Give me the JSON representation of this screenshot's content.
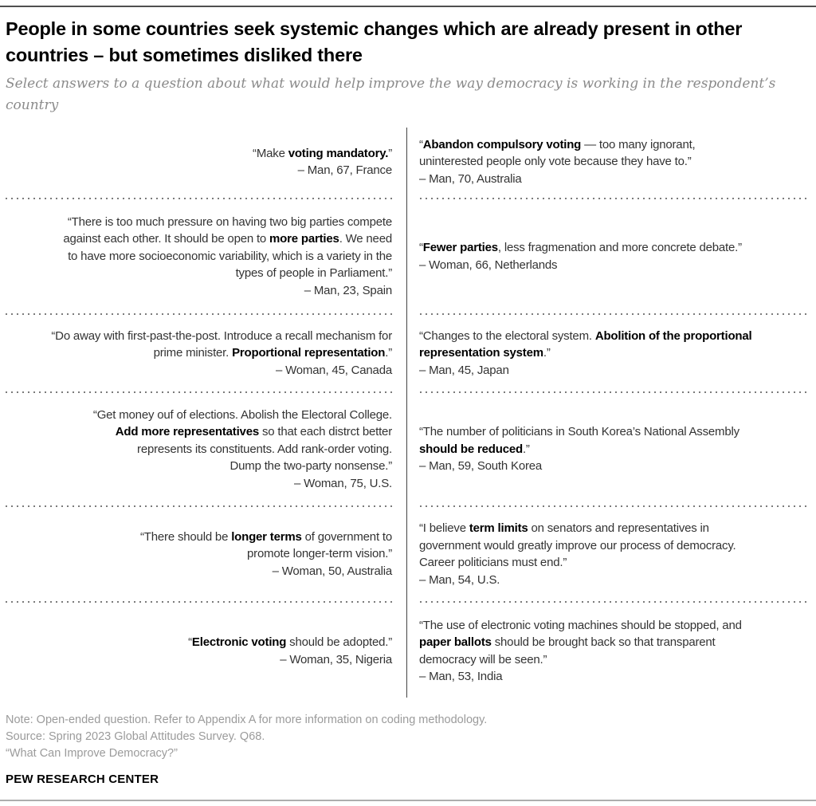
{
  "header": {
    "title": "People in some countries seek systemic changes which are already present in other\ncountries – but sometimes disliked there",
    "subtitle": "Select answers to a question about what would help improve the way democracy is working in the respondent’s\ncountry"
  },
  "quotes": {
    "rows": [
      {
        "left": {
          "segments": [
            {
              "t": "“Make ",
              "b": false
            },
            {
              "t": "voting mandatory.",
              "b": true
            },
            {
              "t": "”",
              "b": false
            }
          ],
          "attribution": "– Man, 67, France"
        },
        "right": {
          "segments": [
            {
              "t": "“",
              "b": false
            },
            {
              "t": "Abandon compulsory voting",
              "b": true
            },
            {
              "t": " — too many ignorant,\nuninterested people only vote because they have to.”",
              "b": false
            }
          ],
          "attribution": "– Man, 70, Australia"
        }
      },
      {
        "left": {
          "segments": [
            {
              "t": "“There is too much pressure on having two big parties compete\nagainst each other. It should be open to ",
              "b": false
            },
            {
              "t": "more parties",
              "b": true
            },
            {
              "t": ". We need\nto have more socioeconomic variability, which is a variety in the\ntypes of people in Parliament.”",
              "b": false
            }
          ],
          "attribution": "– Man, 23, Spain"
        },
        "right": {
          "segments": [
            {
              "t": "“",
              "b": false
            },
            {
              "t": "Fewer parties",
              "b": true
            },
            {
              "t": ", less fragmenation and more concrete debate.”",
              "b": false
            }
          ],
          "attribution": "– Woman, 66, Netherlands"
        }
      },
      {
        "left": {
          "segments": [
            {
              "t": "“Do away with first-past-the-post. Introduce a recall mechanism for\nprime minister. ",
              "b": false
            },
            {
              "t": "Proportional representation",
              "b": true
            },
            {
              "t": ".”",
              "b": false
            }
          ],
          "attribution": "– Woman, 45, Canada"
        },
        "right": {
          "segments": [
            {
              "t": "“Changes to the electoral system. ",
              "b": false
            },
            {
              "t": "Abolition of the proportional\nrepresentation system",
              "b": true
            },
            {
              "t": ".”",
              "b": false
            }
          ],
          "attribution": "– Man, 45, Japan"
        }
      },
      {
        "left": {
          "segments": [
            {
              "t": "“Get money ouf of elections. Abolish the Electoral College.\n",
              "b": false
            },
            {
              "t": "Add more representatives",
              "b": true
            },
            {
              "t": " so that each distrct better\nrepresents its constituents. Add rank-order voting.\nDump the two-party nonsense.”",
              "b": false
            }
          ],
          "attribution": "– Woman, 75, U.S."
        },
        "right": {
          "segments": [
            {
              "t": "“The number of politicians in South Korea’s National Assembly\n",
              "b": false
            },
            {
              "t": "should be reduced",
              "b": true
            },
            {
              "t": ".”",
              "b": false
            }
          ],
          "attribution": "– Man, 59, South Korea"
        }
      },
      {
        "left": {
          "segments": [
            {
              "t": "“There should be ",
              "b": false
            },
            {
              "t": "longer terms",
              "b": true
            },
            {
              "t": " of government to\npromote longer-term vision.”",
              "b": false
            }
          ],
          "attribution": "– Woman, 50, Australia"
        },
        "right": {
          "segments": [
            {
              "t": "“I believe ",
              "b": false
            },
            {
              "t": "term limits",
              "b": true
            },
            {
              "t": " on senators and representatives in\ngovernment would greatly improve our process of democracy.\nCareer politicians must end.”",
              "b": false
            }
          ],
          "attribution": "– Man, 54, U.S."
        }
      },
      {
        "left": {
          "segments": [
            {
              "t": "“",
              "b": false
            },
            {
              "t": "Electronic voting",
              "b": true
            },
            {
              "t": " should be adopted.”",
              "b": false
            }
          ],
          "attribution": "– Woman, 35, Nigeria"
        },
        "right": {
          "segments": [
            {
              "t": "“The use of electronic voting machines should be stopped, and\n",
              "b": false
            },
            {
              "t": "paper ballots",
              "b": true
            },
            {
              "t": " should be brought back so that transparent\ndemocracy will be seen.”",
              "b": false
            }
          ],
          "attribution": "– Man, 53, India"
        }
      }
    ]
  },
  "footer": {
    "note": "Note: Open-ended question. Refer to Appendix A for more information on coding methodology.",
    "source": "Source: Spring 2023 Global Attitudes Survey. Q68.",
    "question": "“What Can Improve Democracy?”",
    "brand": "PEW RESEARCH CENTER"
  },
  "colors": {
    "text": "#333333",
    "bold_text": "#000000",
    "muted_note": "#9b9b9b",
    "dotted_separator": "#7b7b7b",
    "divider": "#444444"
  }
}
